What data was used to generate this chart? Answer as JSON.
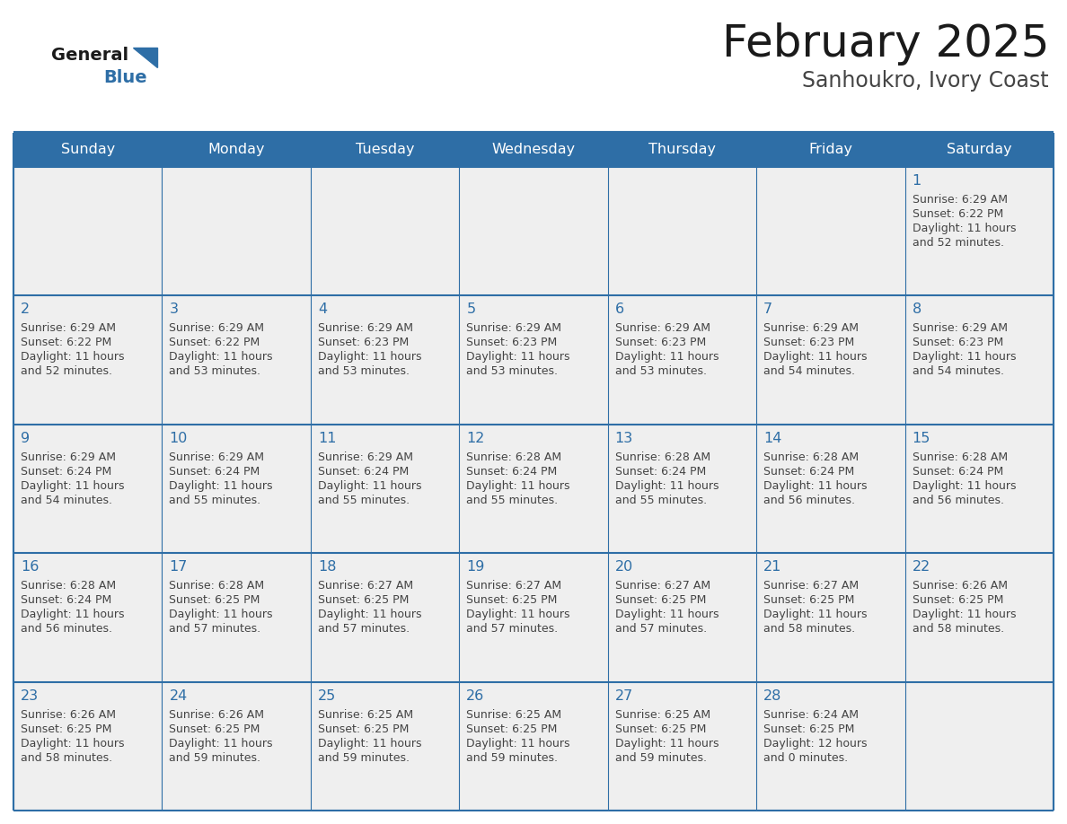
{
  "title": "February 2025",
  "subtitle": "Sanhoukro, Ivory Coast",
  "days_of_week": [
    "Sunday",
    "Monday",
    "Tuesday",
    "Wednesday",
    "Thursday",
    "Friday",
    "Saturday"
  ],
  "header_bg": "#2E6EA6",
  "header_text": "#FFFFFF",
  "cell_bg": "#EFEFEF",
  "border_color": "#2E6EA6",
  "day_number_color": "#2E6EA6",
  "detail_color": "#444444",
  "title_color": "#1a1a1a",
  "subtitle_color": "#444444",
  "logo_general_color": "#1a1a1a",
  "logo_blue_color": "#2E6EA6",
  "calendar_data": [
    [
      null,
      null,
      null,
      null,
      null,
      null,
      {
        "day": 1,
        "sunrise": "6:29 AM",
        "sunset": "6:22 PM",
        "daylight_line1": "11 hours",
        "daylight_line2": "and 52 minutes."
      }
    ],
    [
      {
        "day": 2,
        "sunrise": "6:29 AM",
        "sunset": "6:22 PM",
        "daylight_line1": "11 hours",
        "daylight_line2": "and 52 minutes."
      },
      {
        "day": 3,
        "sunrise": "6:29 AM",
        "sunset": "6:22 PM",
        "daylight_line1": "11 hours",
        "daylight_line2": "and 53 minutes."
      },
      {
        "day": 4,
        "sunrise": "6:29 AM",
        "sunset": "6:23 PM",
        "daylight_line1": "11 hours",
        "daylight_line2": "and 53 minutes."
      },
      {
        "day": 5,
        "sunrise": "6:29 AM",
        "sunset": "6:23 PM",
        "daylight_line1": "11 hours",
        "daylight_line2": "and 53 minutes."
      },
      {
        "day": 6,
        "sunrise": "6:29 AM",
        "sunset": "6:23 PM",
        "daylight_line1": "11 hours",
        "daylight_line2": "and 53 minutes."
      },
      {
        "day": 7,
        "sunrise": "6:29 AM",
        "sunset": "6:23 PM",
        "daylight_line1": "11 hours",
        "daylight_line2": "and 54 minutes."
      },
      {
        "day": 8,
        "sunrise": "6:29 AM",
        "sunset": "6:23 PM",
        "daylight_line1": "11 hours",
        "daylight_line2": "and 54 minutes."
      }
    ],
    [
      {
        "day": 9,
        "sunrise": "6:29 AM",
        "sunset": "6:24 PM",
        "daylight_line1": "11 hours",
        "daylight_line2": "and 54 minutes."
      },
      {
        "day": 10,
        "sunrise": "6:29 AM",
        "sunset": "6:24 PM",
        "daylight_line1": "11 hours",
        "daylight_line2": "and 55 minutes."
      },
      {
        "day": 11,
        "sunrise": "6:29 AM",
        "sunset": "6:24 PM",
        "daylight_line1": "11 hours",
        "daylight_line2": "and 55 minutes."
      },
      {
        "day": 12,
        "sunrise": "6:28 AM",
        "sunset": "6:24 PM",
        "daylight_line1": "11 hours",
        "daylight_line2": "and 55 minutes."
      },
      {
        "day": 13,
        "sunrise": "6:28 AM",
        "sunset": "6:24 PM",
        "daylight_line1": "11 hours",
        "daylight_line2": "and 55 minutes."
      },
      {
        "day": 14,
        "sunrise": "6:28 AM",
        "sunset": "6:24 PM",
        "daylight_line1": "11 hours",
        "daylight_line2": "and 56 minutes."
      },
      {
        "day": 15,
        "sunrise": "6:28 AM",
        "sunset": "6:24 PM",
        "daylight_line1": "11 hours",
        "daylight_line2": "and 56 minutes."
      }
    ],
    [
      {
        "day": 16,
        "sunrise": "6:28 AM",
        "sunset": "6:24 PM",
        "daylight_line1": "11 hours",
        "daylight_line2": "and 56 minutes."
      },
      {
        "day": 17,
        "sunrise": "6:28 AM",
        "sunset": "6:25 PM",
        "daylight_line1": "11 hours",
        "daylight_line2": "and 57 minutes."
      },
      {
        "day": 18,
        "sunrise": "6:27 AM",
        "sunset": "6:25 PM",
        "daylight_line1": "11 hours",
        "daylight_line2": "and 57 minutes."
      },
      {
        "day": 19,
        "sunrise": "6:27 AM",
        "sunset": "6:25 PM",
        "daylight_line1": "11 hours",
        "daylight_line2": "and 57 minutes."
      },
      {
        "day": 20,
        "sunrise": "6:27 AM",
        "sunset": "6:25 PM",
        "daylight_line1": "11 hours",
        "daylight_line2": "and 57 minutes."
      },
      {
        "day": 21,
        "sunrise": "6:27 AM",
        "sunset": "6:25 PM",
        "daylight_line1": "11 hours",
        "daylight_line2": "and 58 minutes."
      },
      {
        "day": 22,
        "sunrise": "6:26 AM",
        "sunset": "6:25 PM",
        "daylight_line1": "11 hours",
        "daylight_line2": "and 58 minutes."
      }
    ],
    [
      {
        "day": 23,
        "sunrise": "6:26 AM",
        "sunset": "6:25 PM",
        "daylight_line1": "11 hours",
        "daylight_line2": "and 58 minutes."
      },
      {
        "day": 24,
        "sunrise": "6:26 AM",
        "sunset": "6:25 PM",
        "daylight_line1": "11 hours",
        "daylight_line2": "and 59 minutes."
      },
      {
        "day": 25,
        "sunrise": "6:25 AM",
        "sunset": "6:25 PM",
        "daylight_line1": "11 hours",
        "daylight_line2": "and 59 minutes."
      },
      {
        "day": 26,
        "sunrise": "6:25 AM",
        "sunset": "6:25 PM",
        "daylight_line1": "11 hours",
        "daylight_line2": "and 59 minutes."
      },
      {
        "day": 27,
        "sunrise": "6:25 AM",
        "sunset": "6:25 PM",
        "daylight_line1": "11 hours",
        "daylight_line2": "and 59 minutes."
      },
      {
        "day": 28,
        "sunrise": "6:24 AM",
        "sunset": "6:25 PM",
        "daylight_line1": "12 hours",
        "daylight_line2": "and 0 minutes."
      },
      null
    ]
  ],
  "num_rows": 5,
  "num_cols": 7
}
